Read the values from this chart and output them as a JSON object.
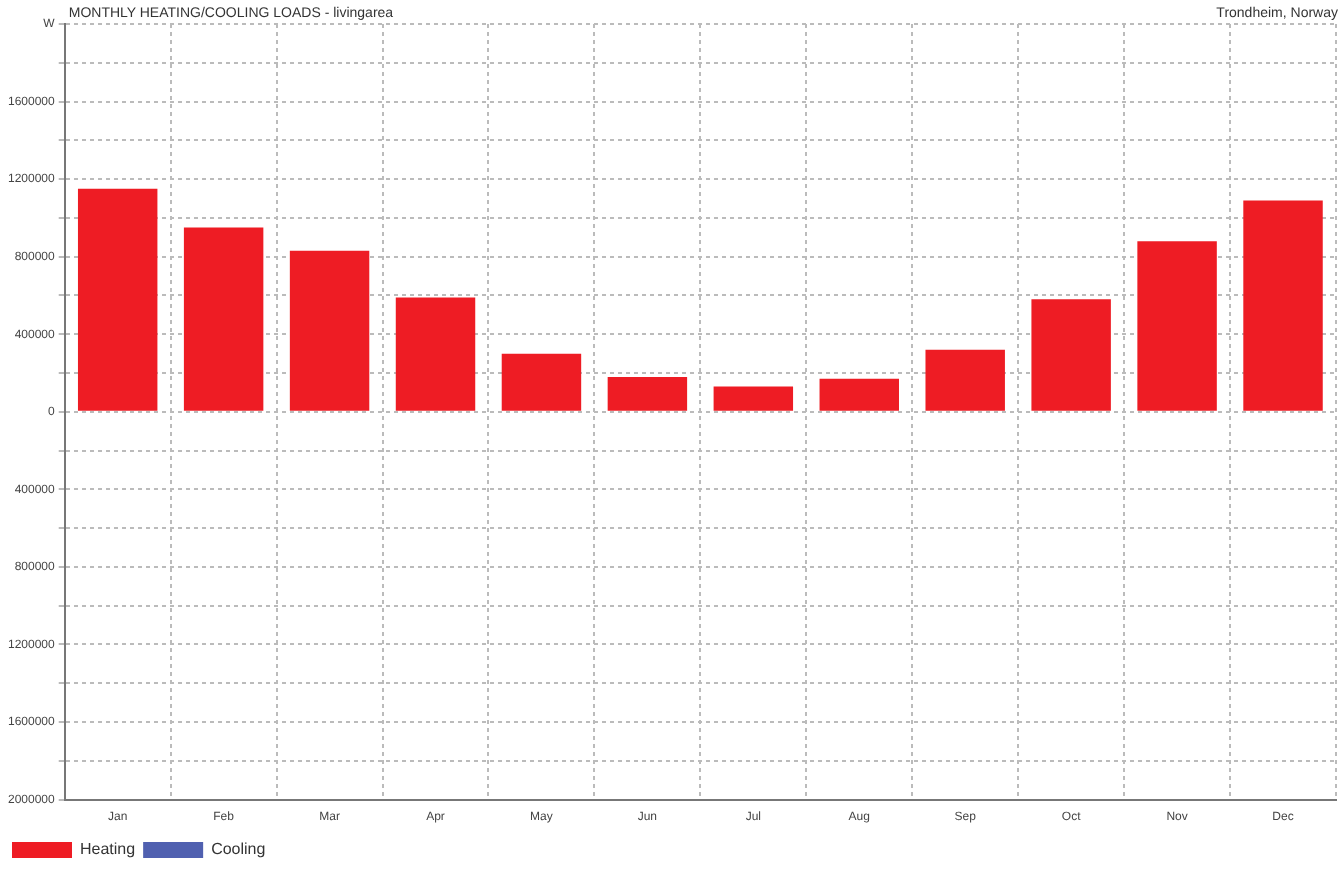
{
  "chart_data": {
    "type": "bar",
    "title": "MONTHLY HEATING/COOLING LOADS - livingarea",
    "subtitle": "Trondheim, Norway",
    "categories": [
      "Jan",
      "Feb",
      "Mar",
      "Apr",
      "May",
      "Jun",
      "Jul",
      "Aug",
      "Sep",
      "Oct",
      "Nov",
      "Dec"
    ],
    "series": [
      {
        "name": "Heating",
        "color": "#ee1c24",
        "values": [
          1150000,
          950000,
          830000,
          590000,
          300000,
          180000,
          130000,
          170000,
          320000,
          580000,
          880000,
          1090000
        ]
      },
      {
        "name": "Cooling",
        "color": "#5060b0",
        "values": [
          0,
          0,
          0,
          0,
          0,
          0,
          0,
          0,
          0,
          0,
          0,
          0
        ]
      }
    ],
    "stacked": true,
    "ylim": [
      -2000000,
      2000000
    ],
    "yticks": [
      {
        "value": -2000000,
        "label": "2000000"
      },
      {
        "value": -1800000,
        "label": null
      },
      {
        "value": -1600000,
        "label": "1600000"
      },
      {
        "value": -1400000,
        "label": null
      },
      {
        "value": -1200000,
        "label": "1200000"
      },
      {
        "value": -1000000,
        "label": null
      },
      {
        "value": -800000,
        "label": "800000"
      },
      {
        "value": -600000,
        "label": null
      },
      {
        "value": -400000,
        "label": "400000"
      },
      {
        "value": -200000,
        "label": null
      },
      0,
      {
        "value": 200000,
        "label": null
      },
      400000,
      {
        "value": 600000,
        "label": null
      },
      800000,
      {
        "value": 1000000,
        "label": null
      },
      1200000,
      {
        "value": 1400000,
        "label": null
      },
      1600000,
      {
        "value": 1800000,
        "label": null
      },
      {
        "value": 2000000,
        "label": "W"
      }
    ],
    "grid": true,
    "legend": "bottom left"
  }
}
